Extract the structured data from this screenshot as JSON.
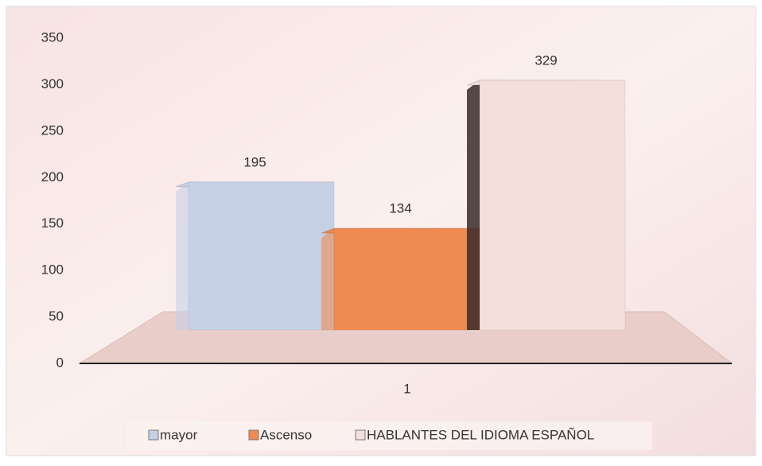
{
  "chart_data": {
    "type": "bar",
    "categories": [
      "1"
    ],
    "series": [
      {
        "name": "mayor",
        "color": "#c6d1e8",
        "values": [
          195
        ]
      },
      {
        "name": "Ascenso",
        "color": "#ee8a52",
        "values": [
          134
        ]
      },
      {
        "name": "HABLANTES DEL IDIOMA ESPAÑOL",
        "color": "#f3dedb",
        "values": [
          329
        ]
      }
    ],
    "ylim": [
      0,
      350
    ],
    "yticks": [
      0,
      50,
      100,
      150,
      200,
      250,
      300,
      350
    ],
    "legend": "bottom"
  }
}
